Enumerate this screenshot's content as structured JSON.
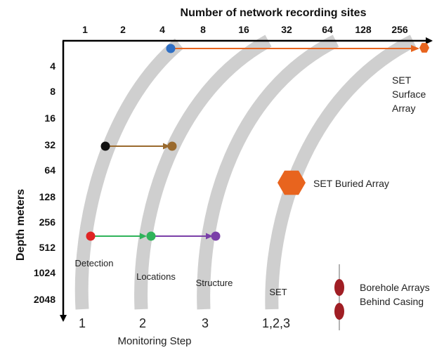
{
  "x_axis": {
    "title": "Number of network recording sites",
    "ticks": [
      "1",
      "2",
      "4",
      "8",
      "16",
      "32",
      "64",
      "128",
      "256"
    ]
  },
  "y_axis": {
    "title": "Depth  meters",
    "ticks": [
      "4",
      "8",
      "16",
      "32",
      "64",
      "128",
      "256",
      "512",
      "1024",
      "2048"
    ]
  },
  "steps_axis": {
    "title": "Monitoring Step",
    "labels": [
      "1",
      "2",
      "3",
      "1,2,3"
    ]
  },
  "stage_labels": {
    "detection": "Detection",
    "locations": "Locations",
    "structure": "Structure",
    "set": "SET"
  },
  "annotations": {
    "surface_array": [
      "SET",
      "Surface",
      "Array"
    ],
    "buried_array": "SET Buried Array",
    "borehole": [
      "Borehole Arrays",
      "Behind Casing"
    ]
  },
  "colors": {
    "band": "#cfcfcf",
    "orange": "#e8641e",
    "blue": "#2f6fc4",
    "black": "#111111",
    "brown": "#9a6a2e",
    "red": "#e02424",
    "green": "#2fb35a",
    "purple": "#7a3fa8",
    "borehole": "#a01e24",
    "axis": "#000000"
  }
}
